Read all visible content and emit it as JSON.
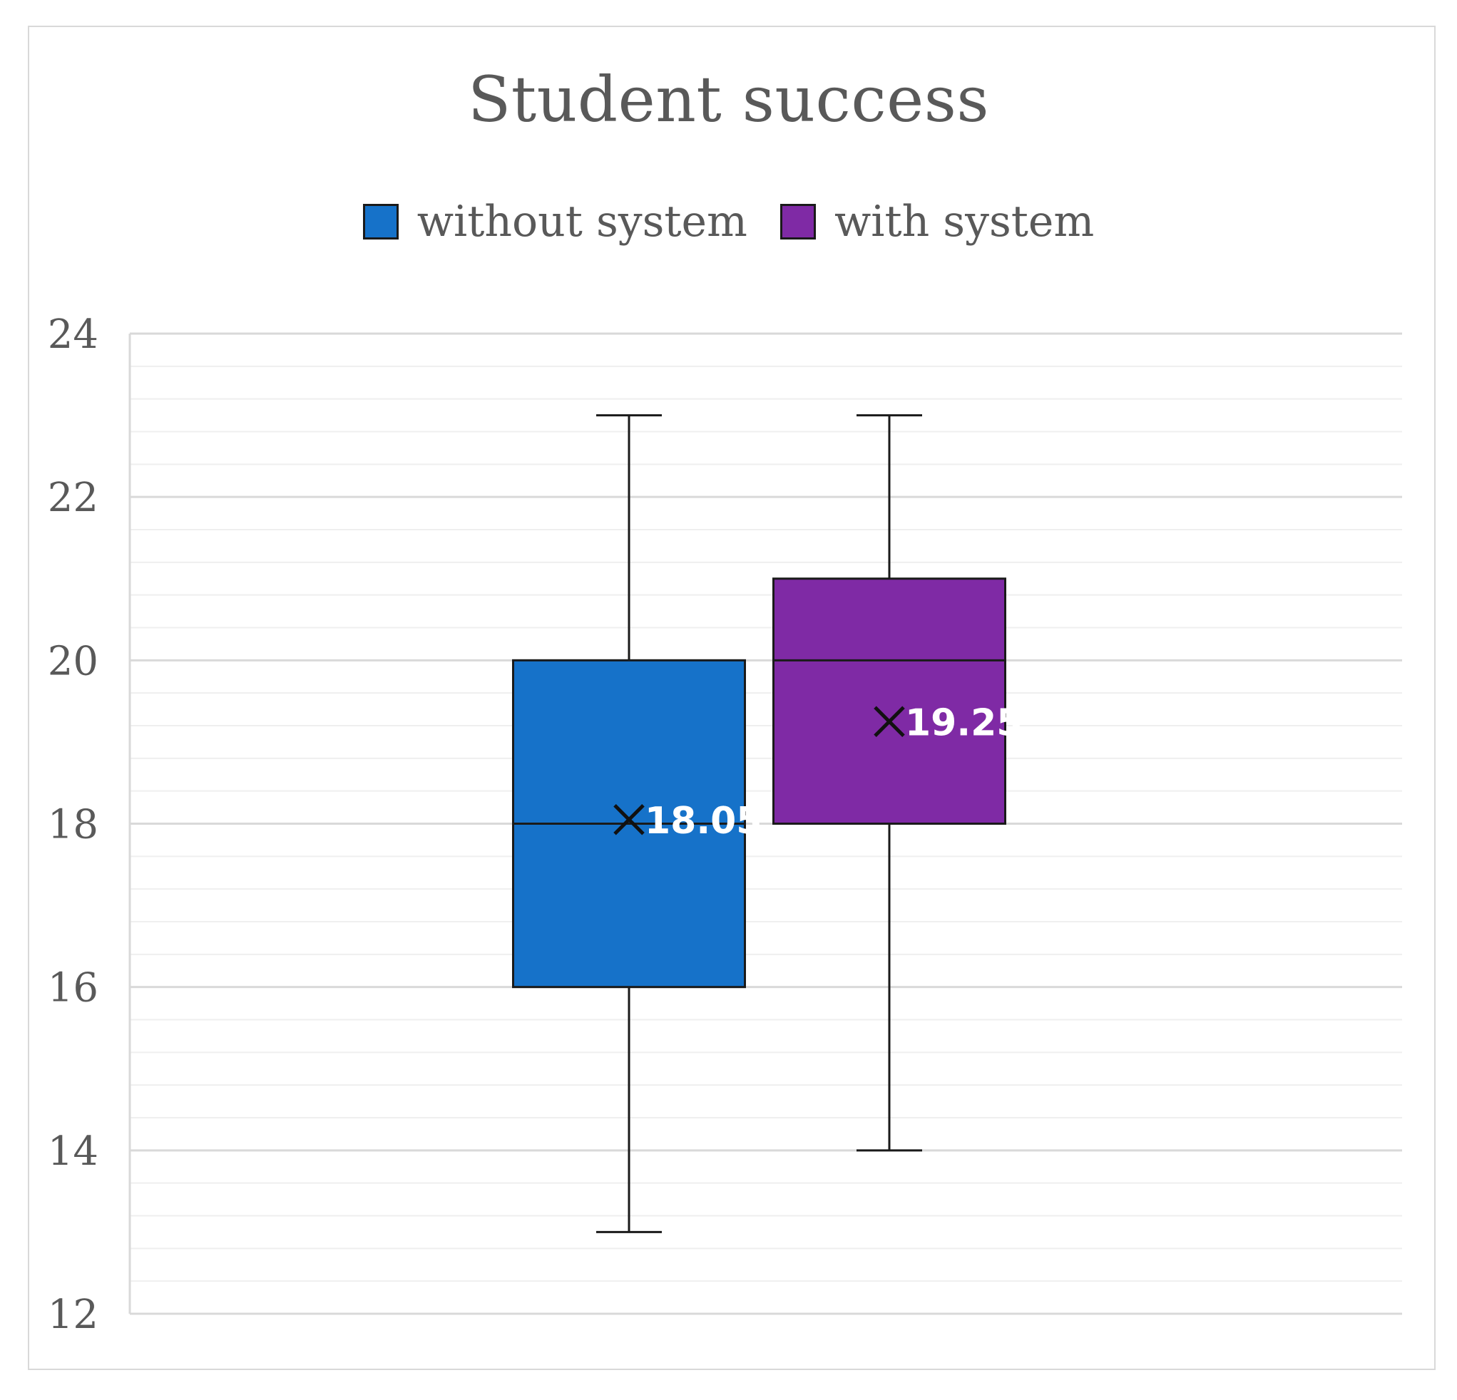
{
  "chart_data": {
    "type": "boxplot",
    "title": "Student success",
    "xlabel": "",
    "ylabel": "",
    "ylim": [
      12,
      24
    ],
    "yticks": [
      12,
      14,
      16,
      18,
      20,
      22,
      24
    ],
    "minor_step": 0.4,
    "legend_position": "top-center",
    "series": [
      {
        "name": "without system",
        "color": "#1672c9",
        "min": 13,
        "q1": 16,
        "median": 18,
        "q3": 20,
        "max": 23,
        "mean": 18.05,
        "mean_label": "18.05"
      },
      {
        "name": "with system",
        "color": "#7f2aa5",
        "min": 14,
        "q1": 18,
        "median": 20,
        "q3": 21,
        "max": 23,
        "mean": 19.25,
        "mean_label": "19.25"
      }
    ]
  }
}
